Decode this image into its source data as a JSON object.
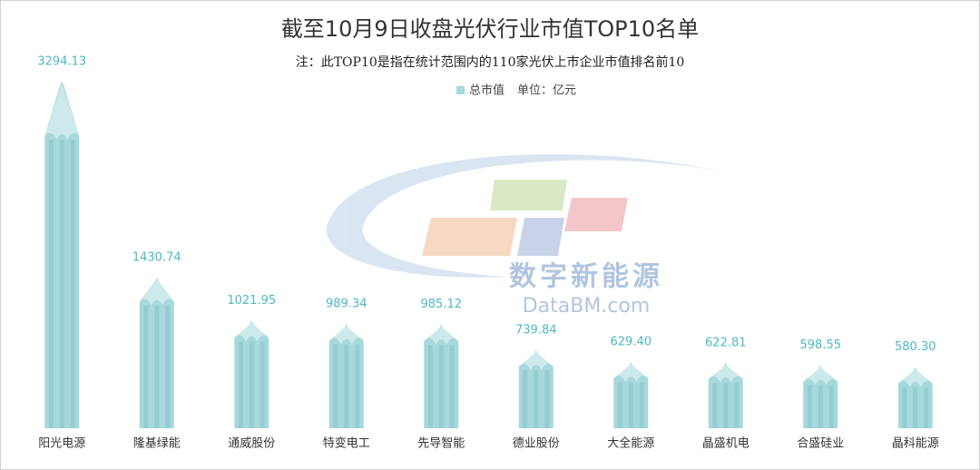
{
  "chart_data": {
    "type": "bar",
    "title": "截至10月9日收盘光伏行业市值TOP10名单",
    "subtitle": "注：此TOP10是指在统计范围内的110家光伏上市企业市值排名前10",
    "unit": "单位：亿元",
    "categories": [
      "阳光电源",
      "隆基绿能",
      "通威股份",
      "特变电工",
      "先导智能",
      "德业股份",
      "大全能源",
      "晶盛机电",
      "合盛硅业",
      "晶科能源"
    ],
    "series": [
      {
        "name": "总市值",
        "color": "#a6d8dc",
        "values": [
          3294.13,
          1430.74,
          1021.95,
          989.34,
          985.12,
          739.84,
          629.4,
          622.81,
          598.55,
          580.3
        ],
        "value_labels": [
          "3294.13",
          "1430.74",
          "1021.95",
          "989.34",
          "985.12",
          "739.84",
          "629.40",
          "622.81",
          "598.55",
          "580.30"
        ]
      }
    ],
    "label_color": "#4fb8c4",
    "watermark": {
      "cn": "数字新能源",
      "en": "DataBM.com"
    }
  }
}
